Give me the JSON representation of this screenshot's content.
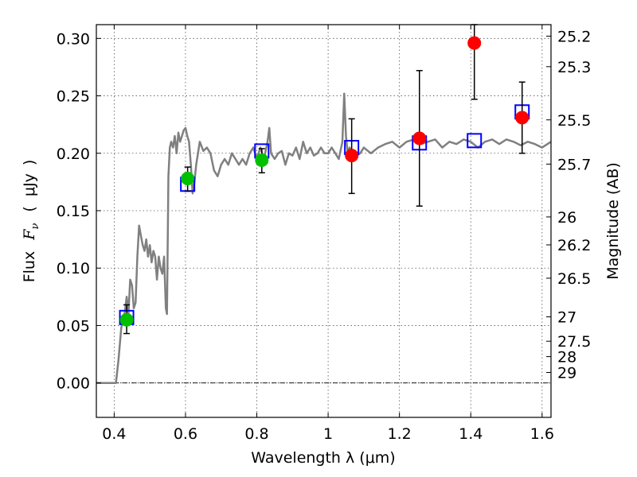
{
  "chart_data": {
    "type": "scatter",
    "xlabel": "Wavelength  λ (μm)",
    "ylabel": "Flux  F_ν  ( μJy )",
    "ylabel_parts": [
      "Flux",
      "F",
      "ν",
      "(",
      "μJy",
      ")"
    ],
    "y2label": "Magnitude (AB)",
    "xlim": [
      0.35,
      1.625
    ],
    "ylim": [
      -0.03,
      0.312
    ],
    "grid": true,
    "x_ticks": [
      0.4,
      0.6,
      0.8,
      1.0,
      1.2,
      1.4,
      1.6
    ],
    "x_tick_labels": [
      "0.4",
      "0.6",
      "0.8",
      "1",
      "1.2",
      "1.4",
      "1.6"
    ],
    "y_ticks": [
      0.0,
      0.05,
      0.1,
      0.15,
      0.2,
      0.25,
      0.3
    ],
    "y_tick_labels": [
      "0.00",
      "0.05",
      "0.10",
      "0.15",
      "0.20",
      "0.25",
      "0.30"
    ],
    "mag_ticks": [
      25.2,
      25.3,
      25.5,
      25.7,
      26,
      26.2,
      26.5,
      27,
      27.5,
      28,
      29
    ],
    "mag_tick_labels": [
      "25.2",
      "25.3",
      "25.5",
      "25.7",
      "26",
      "26.2",
      "26.5",
      "27",
      "27.5",
      "28",
      "29"
    ],
    "model_spectrum": {
      "color": "#808080",
      "x": [
        0.35,
        0.405,
        0.412,
        0.42,
        0.425,
        0.43,
        0.435,
        0.44,
        0.445,
        0.45,
        0.455,
        0.46,
        0.465,
        0.47,
        0.475,
        0.48,
        0.485,
        0.49,
        0.495,
        0.5,
        0.505,
        0.51,
        0.515,
        0.52,
        0.525,
        0.53,
        0.535,
        0.54,
        0.545,
        0.548,
        0.552,
        0.556,
        0.56,
        0.565,
        0.57,
        0.575,
        0.58,
        0.585,
        0.59,
        0.595,
        0.6,
        0.605,
        0.61,
        0.615,
        0.62,
        0.625,
        0.63,
        0.64,
        0.65,
        0.66,
        0.67,
        0.68,
        0.69,
        0.7,
        0.71,
        0.72,
        0.73,
        0.74,
        0.75,
        0.76,
        0.77,
        0.78,
        0.79,
        0.8,
        0.81,
        0.82,
        0.83,
        0.835,
        0.84,
        0.85,
        0.86,
        0.87,
        0.88,
        0.89,
        0.9,
        0.91,
        0.92,
        0.93,
        0.94,
        0.95,
        0.96,
        0.97,
        0.98,
        0.99,
        1.0,
        1.01,
        1.02,
        1.03,
        1.04,
        1.045,
        1.05,
        1.055,
        1.06,
        1.07,
        1.08,
        1.09,
        1.1,
        1.12,
        1.14,
        1.16,
        1.18,
        1.2,
        1.22,
        1.24,
        1.26,
        1.28,
        1.3,
        1.32,
        1.34,
        1.36,
        1.38,
        1.4,
        1.42,
        1.44,
        1.46,
        1.48,
        1.5,
        1.52,
        1.54,
        1.56,
        1.58,
        1.6,
        1.625
      ],
      "y": [
        0.0,
        0.0,
        0.02,
        0.048,
        0.055,
        0.062,
        0.075,
        0.06,
        0.09,
        0.085,
        0.065,
        0.07,
        0.11,
        0.137,
        0.128,
        0.12,
        0.115,
        0.125,
        0.11,
        0.12,
        0.105,
        0.115,
        0.11,
        0.09,
        0.11,
        0.1,
        0.095,
        0.11,
        0.065,
        0.06,
        0.18,
        0.205,
        0.21,
        0.205,
        0.215,
        0.2,
        0.218,
        0.21,
        0.215,
        0.22,
        0.222,
        0.215,
        0.21,
        0.19,
        0.165,
        0.175,
        0.19,
        0.21,
        0.202,
        0.205,
        0.2,
        0.185,
        0.18,
        0.19,
        0.195,
        0.19,
        0.2,
        0.195,
        0.19,
        0.195,
        0.19,
        0.2,
        0.205,
        0.195,
        0.205,
        0.195,
        0.21,
        0.222,
        0.2,
        0.195,
        0.2,
        0.202,
        0.19,
        0.2,
        0.198,
        0.205,
        0.195,
        0.21,
        0.2,
        0.205,
        0.198,
        0.2,
        0.205,
        0.2,
        0.2,
        0.205,
        0.2,
        0.195,
        0.21,
        0.252,
        0.215,
        0.2,
        0.205,
        0.2,
        0.198,
        0.2,
        0.205,
        0.2,
        0.205,
        0.208,
        0.21,
        0.205,
        0.21,
        0.212,
        0.208,
        0.21,
        0.212,
        0.205,
        0.21,
        0.208,
        0.212,
        0.21,
        0.205,
        0.21,
        0.212,
        0.208,
        0.212,
        0.21,
        0.207,
        0.21,
        0.208,
        0.205,
        0.21
      ]
    },
    "series": [
      {
        "marker": "open-square",
        "color": "#0000ff",
        "points": [
          {
            "x": 0.435,
            "y": 0.057
          },
          {
            "x": 0.606,
            "y": 0.173
          },
          {
            "x": 0.814,
            "y": 0.202
          },
          {
            "x": 1.066,
            "y": 0.205
          },
          {
            "x": 1.256,
            "y": 0.209
          },
          {
            "x": 1.41,
            "y": 0.211
          },
          {
            "x": 1.544,
            "y": 0.236
          }
        ]
      },
      {
        "marker": "filled-circle",
        "color": "#00c000",
        "points": [
          {
            "x": 0.435,
            "y": 0.055,
            "err_low": 0.043,
            "err_high": 0.068
          },
          {
            "x": 0.606,
            "y": 0.178,
            "err_low": 0.167,
            "err_high": 0.188
          },
          {
            "x": 0.814,
            "y": 0.194,
            "err_low": 0.183,
            "err_high": 0.204
          }
        ]
      },
      {
        "marker": "filled-circle",
        "color": "#ff0000",
        "points": [
          {
            "x": 1.066,
            "y": 0.198,
            "err_low": 0.165,
            "err_high": 0.23
          },
          {
            "x": 1.256,
            "y": 0.213,
            "err_low": 0.154,
            "err_high": 0.272
          },
          {
            "x": 1.41,
            "y": 0.296,
            "err_low": 0.247,
            "err_high": 0.312
          },
          {
            "x": 1.544,
            "y": 0.231,
            "err_low": 0.2,
            "err_high": 0.262
          }
        ]
      }
    ]
  }
}
